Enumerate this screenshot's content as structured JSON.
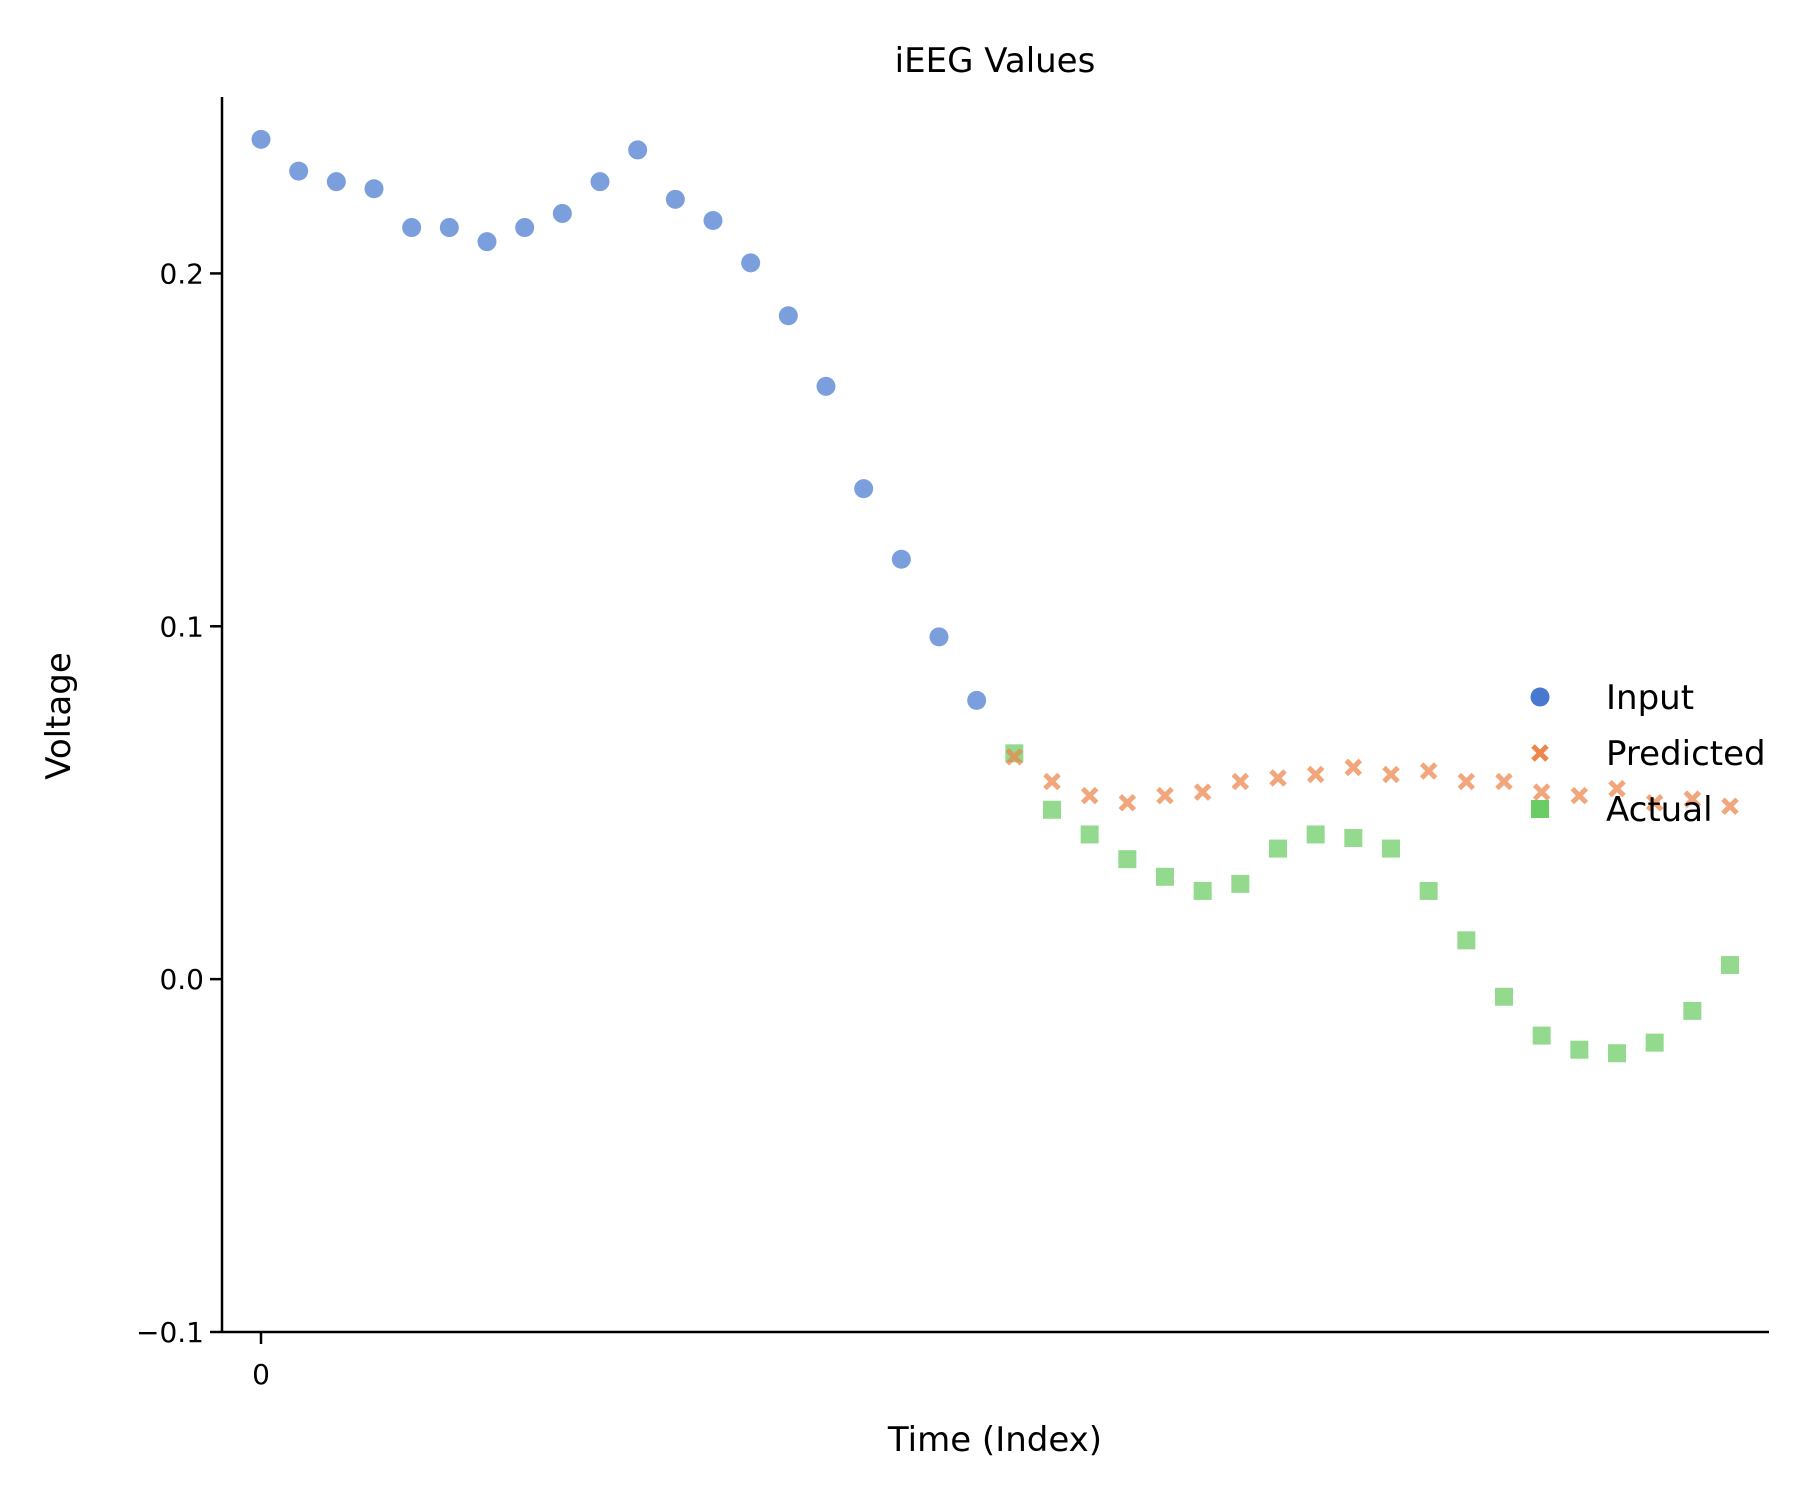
{
  "chart_data": {
    "type": "scatter",
    "title": "iEEG Values",
    "xlabel": "Time (Index)",
    "ylabel": "Voltage",
    "ylim": [
      -0.1,
      0.25
    ],
    "xlim": [
      -1,
      40
    ],
    "yticks": [
      -0.1,
      0.0,
      0.1,
      0.2
    ],
    "ytick_labels": [
      "−0.1",
      "0.0",
      "0.1",
      "0.2"
    ],
    "xticks": [
      0
    ],
    "xtick_labels": [
      "0"
    ],
    "grid": false,
    "legend_position": "right",
    "series": [
      {
        "name": "Input",
        "marker": "circle",
        "color": "#4878d0",
        "x": [
          0,
          1,
          2,
          3,
          4,
          5,
          6,
          7,
          8,
          9,
          10,
          11,
          12,
          13,
          14,
          15,
          16,
          17,
          18,
          19
        ],
        "y": [
          0.238,
          0.229,
          0.226,
          0.224,
          0.213,
          0.213,
          0.209,
          0.213,
          0.217,
          0.226,
          0.235,
          0.221,
          0.215,
          0.203,
          0.188,
          0.168,
          0.139,
          0.119,
          0.097,
          0.079
        ]
      },
      {
        "name": "Predicted",
        "marker": "x",
        "color": "#ee854a",
        "x": [
          20,
          21,
          22,
          23,
          24,
          25,
          26,
          27,
          28,
          29,
          30,
          31,
          32,
          33,
          34,
          35,
          36,
          37,
          38,
          39
        ],
        "y": [
          0.063,
          0.056,
          0.052,
          0.05,
          0.052,
          0.053,
          0.056,
          0.057,
          0.058,
          0.06,
          0.058,
          0.059,
          0.056,
          0.056,
          0.053,
          0.052,
          0.054,
          0.05,
          0.051,
          0.049
        ]
      },
      {
        "name": "Actual",
        "marker": "square",
        "color": "#6acc64",
        "x": [
          20,
          21,
          22,
          23,
          24,
          25,
          26,
          27,
          28,
          29,
          30,
          31,
          32,
          33,
          34,
          35,
          36,
          37,
          38,
          39
        ],
        "y": [
          0.064,
          0.048,
          0.041,
          0.034,
          0.029,
          0.025,
          0.027,
          0.037,
          0.041,
          0.04,
          0.037,
          0.025,
          0.011,
          -0.005,
          -0.016,
          -0.02,
          -0.021,
          -0.018,
          -0.009,
          0.004
        ]
      }
    ]
  }
}
